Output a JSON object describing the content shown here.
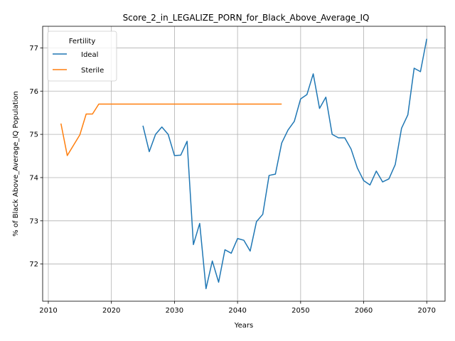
{
  "chart_data": {
    "type": "line",
    "title": "Score_2_in_LEGALIZE_PORN_for_Black_Above_Average_IQ",
    "xlabel": "Years",
    "ylabel": "% of Black Above_Average_IQ Population",
    "xlim": [
      2009.1,
      2072.9
    ],
    "ylim": [
      71.14,
      77.5
    ],
    "xticks": [
      2010,
      2020,
      2030,
      2040,
      2050,
      2060,
      2070
    ],
    "yticks": [
      72,
      73,
      74,
      75,
      76,
      77
    ],
    "grid": true,
    "legend": {
      "title": "Fertility",
      "placement": "top-left"
    },
    "series": [
      {
        "name": "Ideal",
        "color": "#1f77b4",
        "x": [
          2025,
          2026,
          2027,
          2028,
          2029,
          2030,
          2031,
          2032,
          2033,
          2034,
          2035,
          2036,
          2037,
          2038,
          2039,
          2040,
          2041,
          2042,
          2043,
          2044,
          2045,
          2046,
          2047,
          2048,
          2049,
          2050,
          2051,
          2052,
          2053,
          2054,
          2055,
          2056,
          2057,
          2058,
          2059,
          2060,
          2061,
          2062,
          2063,
          2064,
          2065,
          2066,
          2067,
          2068,
          2069,
          2070
        ],
        "y": [
          75.2,
          74.6,
          75.0,
          75.17,
          75.0,
          74.51,
          74.52,
          74.84,
          72.45,
          72.94,
          71.43,
          72.07,
          71.58,
          72.33,
          72.25,
          72.59,
          72.55,
          72.3,
          72.98,
          73.15,
          74.05,
          74.08,
          74.8,
          75.1,
          75.3,
          75.82,
          75.92,
          76.4,
          75.6,
          75.86,
          75.0,
          74.92,
          74.92,
          74.66,
          74.22,
          73.93,
          73.83,
          74.15,
          73.9,
          73.97,
          74.3,
          75.14,
          75.45,
          76.53,
          76.45,
          77.21
        ]
      },
      {
        "name": "Sterile",
        "color": "#ff7f0e",
        "x": [
          2012,
          2013,
          2014,
          2015,
          2016,
          2017,
          2018,
          2019,
          2020,
          2021,
          2022,
          2023,
          2024,
          2025,
          2026,
          2027,
          2028,
          2029,
          2030,
          2031,
          2032,
          2033,
          2034,
          2035,
          2036,
          2037,
          2038,
          2039,
          2040,
          2041,
          2042,
          2043,
          2044,
          2045,
          2046,
          2047
        ],
        "y": [
          75.25,
          74.51,
          74.75,
          74.99,
          75.47,
          75.47,
          75.7,
          75.7,
          75.7,
          75.7,
          75.7,
          75.7,
          75.7,
          75.7,
          75.7,
          75.7,
          75.7,
          75.7,
          75.7,
          75.7,
          75.7,
          75.7,
          75.7,
          75.7,
          75.7,
          75.7,
          75.7,
          75.7,
          75.7,
          75.7,
          75.7,
          75.7,
          75.7,
          75.7,
          75.7,
          75.7
        ]
      }
    ]
  }
}
